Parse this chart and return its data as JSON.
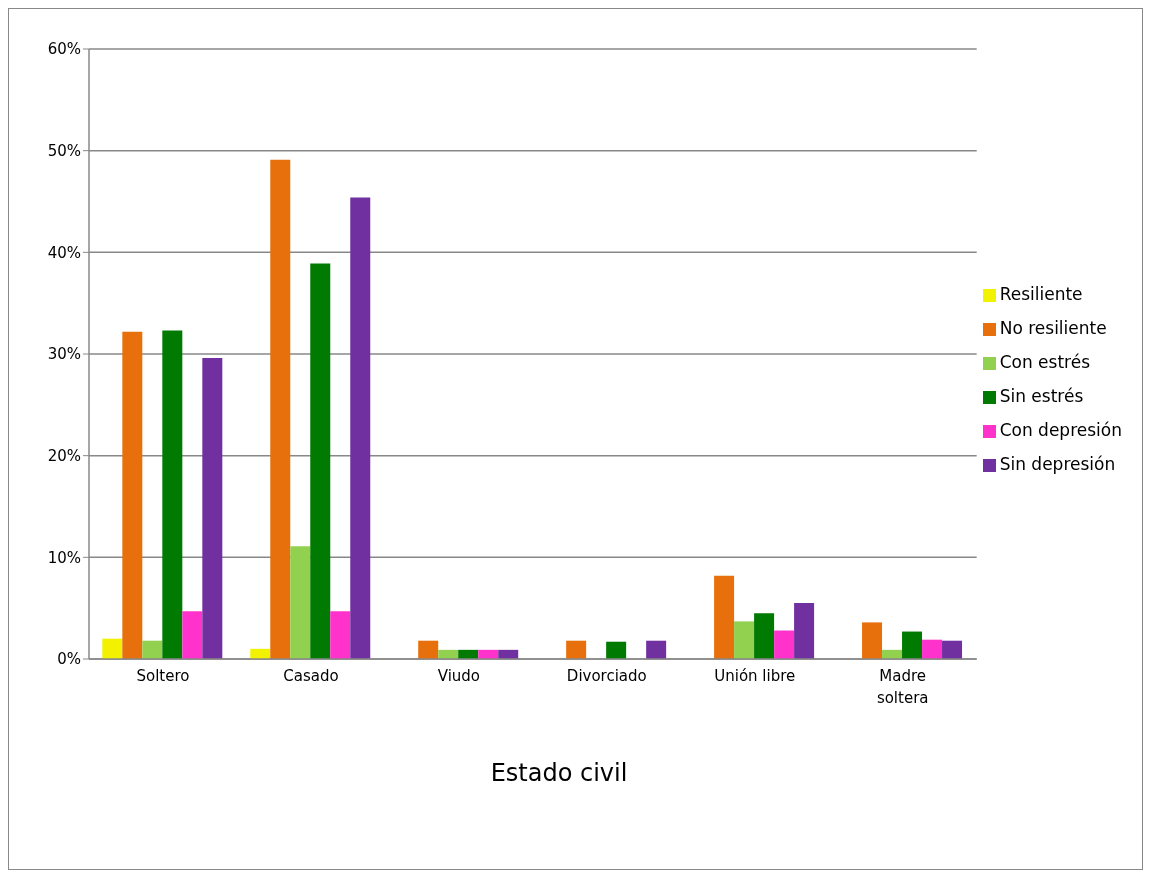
{
  "chart_data": {
    "type": "bar",
    "xlabel": "Estado civil",
    "categories": [
      "Soltero",
      "Casado",
      "Viudo",
      "Divorciado",
      "Unión libre",
      "Madre soltera"
    ],
    "series": [
      {
        "name": "Resiliente",
        "color": "#f2f200",
        "values": [
          2.0,
          1.0,
          null,
          null,
          null,
          null
        ]
      },
      {
        "name": "No resiliente",
        "color": "#e8700c",
        "values": [
          32.2,
          49.1,
          1.8,
          1.8,
          8.2,
          3.6
        ]
      },
      {
        "name": "Con estrés",
        "color": "#92d050",
        "values": [
          1.8,
          11.1,
          0.9,
          null,
          3.7,
          0.9
        ]
      },
      {
        "name": "Sin estrés",
        "color": "#007a00",
        "values": [
          32.3,
          38.9,
          0.9,
          1.7,
          4.5,
          2.7
        ]
      },
      {
        "name": "Con depresión",
        "color": "#ff33cc",
        "values": [
          4.7,
          4.7,
          0.9,
          null,
          2.8,
          1.9
        ]
      },
      {
        "name": "Sin depresión",
        "color": "#7030a0",
        "values": [
          29.6,
          45.4,
          0.9,
          1.8,
          5.5,
          1.8
        ]
      }
    ],
    "ylim": [
      0,
      60
    ],
    "yticks": [
      {
        "value": 0,
        "label": "0%"
      },
      {
        "value": 10,
        "label": "10%"
      },
      {
        "value": 20,
        "label": "20%"
      },
      {
        "value": 30,
        "label": "30%"
      },
      {
        "value": 40,
        "label": "40%"
      },
      {
        "value": 50,
        "label": "50%"
      },
      {
        "value": 60,
        "label": "60%"
      }
    ],
    "grid": "y",
    "legend": "right"
  }
}
